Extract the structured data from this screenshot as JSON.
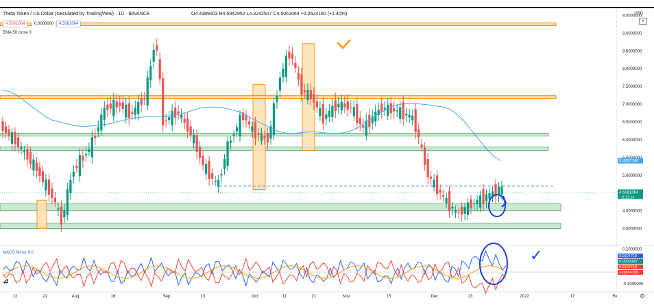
{
  "header": {
    "title": "Theta Token / US Dollar (calculated by TradingView) · 1D · BINANCE",
    "ohlc": "O4.4389003 H4.6942952 L4.3242507 C4.5061064 +0.0624180 (+1.40%)",
    "bid": "4.5061064",
    "spread": "0.0000000",
    "ask": "4.5061064",
    "indicator_ema": "EMA 50 close 0",
    "indicator_macd": "MACD Mirror 9  0",
    "currency": "USD"
  },
  "colors": {
    "up": "#089981",
    "down": "#ef5350",
    "ema": "#42a5f5",
    "orange_line": "#f57c00",
    "green_zone": "#b2dfc4",
    "orange_zone": "#ffe0b2",
    "macd_blue": "#2962ff",
    "macd_red": "#f44336",
    "macd_orange": "#ff9800",
    "annotation": "#1a3fd6"
  },
  "chart_data": [
    {
      "type": "candlestick",
      "title": "Theta Token / US Dollar (calculated by TradingView) · 1D · BINANCE",
      "y_ticks": [
        "9.5000000",
        "9.0000000",
        "8.5000000",
        "8.0000000",
        "7.5000000",
        "7.0000000",
        "6.5000000",
        "6.0000000",
        "5.5000000",
        "5.0000000",
        "4.5000000",
        "4.0000000",
        "3.5000000"
      ],
      "x_ticks": [
        "12",
        "22",
        "Aug",
        "16",
        "Sep",
        "13",
        "Oct",
        "11",
        "21",
        "Nov",
        "15",
        "Dec",
        "13",
        "2022",
        "17",
        "Fe"
      ],
      "ylim": [
        3.3,
        9.7
      ],
      "last_price_label": "4.5061064",
      "countdown_label": "11:22:14",
      "ema_label": "5.4097740",
      "ema50_approx": [
        7.4,
        7.35,
        7.25,
        7.1,
        6.95,
        6.8,
        6.65,
        6.55,
        6.5,
        6.45,
        6.4,
        6.38,
        6.38,
        6.4,
        6.42,
        6.45,
        6.5,
        6.55,
        6.6,
        6.62,
        6.65,
        6.65,
        6.65,
        6.66,
        6.68,
        6.72,
        6.78,
        6.85,
        6.9,
        6.92,
        6.92,
        6.9,
        6.85,
        6.8,
        6.72,
        6.6,
        6.5,
        6.4,
        6.3,
        6.22,
        6.18,
        6.18,
        6.2,
        6.22,
        6.22,
        6.2,
        6.18,
        6.18,
        6.2,
        6.25,
        6.35,
        6.5,
        6.62,
        6.75,
        6.85,
        6.95,
        7.0,
        7.02,
        7.02,
        7.0,
        6.98,
        6.95,
        6.92,
        6.85,
        6.7,
        6.5,
        6.25,
        6.0,
        5.75,
        5.55,
        5.41
      ],
      "horizontal_lines": [
        9.25,
        7.2,
        4.7
      ],
      "green_zones": [
        [
          6.12,
          6.18
        ],
        [
          5.7,
          5.8
        ],
        [
          4.0,
          4.2
        ],
        [
          3.5,
          3.65
        ]
      ]
    },
    {
      "type": "line",
      "title": "MACD Mirror 9 0",
      "y_ticks": [
        "0.2000000",
        "0.1000000",
        "0.0000000",
        "-0.1000000"
      ],
      "ylim": [
        -0.16,
        0.22
      ],
      "value_labels": [
        "0.0107718",
        "0.0000000",
        "0.0107718",
        "-0.0014195"
      ]
    }
  ],
  "annotations": {
    "checkmark": "✓"
  }
}
